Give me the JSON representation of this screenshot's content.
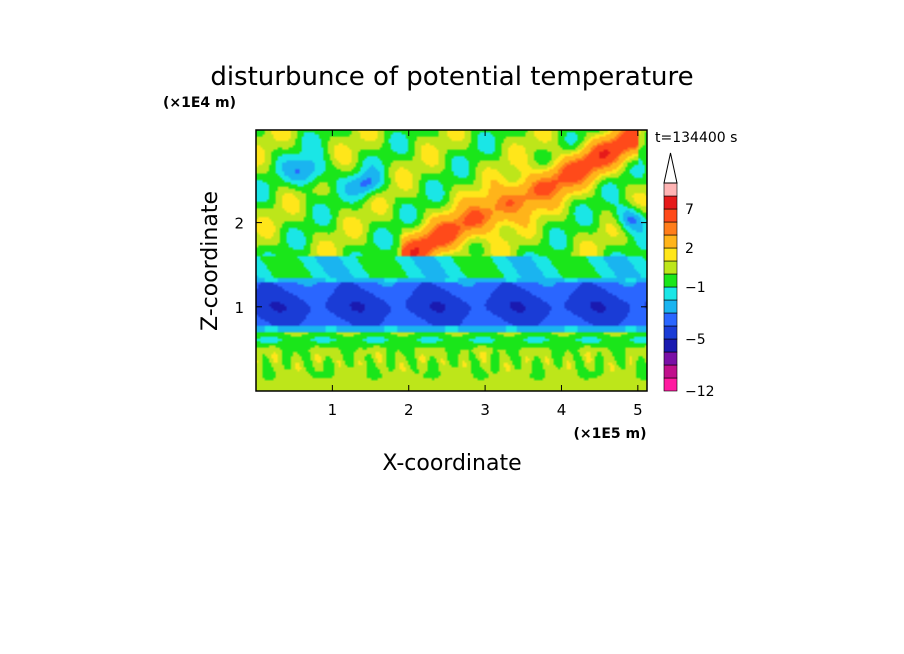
{
  "chart_data": {
    "type": "heatmap",
    "title": "disturbunce of potential temperature",
    "xlabel": "X-coordinate",
    "ylabel": "Z-coordinate",
    "x_unit": "(×1E5 m)",
    "y_unit": "(×1E4 m)",
    "time_label": "t=134400 s",
    "xlim": [
      0,
      5.12
    ],
    "ylim": [
      0,
      3.1
    ],
    "x_ticks": [
      "1",
      "2",
      "3",
      "4",
      "5"
    ],
    "y_ticks": [
      "1",
      "2"
    ],
    "colorbar": {
      "levels": [
        -12,
        -11,
        -9,
        -7,
        -5,
        -4,
        -3,
        -2,
        -1,
        0,
        1,
        2,
        4,
        5,
        7,
        9,
        11
      ],
      "tick_labels": [
        "-12",
        "-5",
        "-1",
        "2",
        "7"
      ],
      "colors": [
        "#ff1aa0",
        "#c0108c",
        "#7a10a6",
        "#1a1ab0",
        "#1a3cd6",
        "#2a66ff",
        "#1ab4f0",
        "#1ae6e6",
        "#1ae61a",
        "#bde61a",
        "#ffe61a",
        "#ffb41a",
        "#ff7d1a",
        "#ff4a1a",
        "#e61a1a",
        "#ffb4b4"
      ],
      "extend_max": true
    },
    "field_summary": {
      "bands": [
        {
          "z_range": [
            0,
            0.1
          ],
          "level": "0 to 1"
        },
        {
          "z_range": [
            0.1,
            0.7
          ],
          "level": "-2 to 2, wavy"
        },
        {
          "z_range": [
            0.7,
            1.35
          ],
          "level": "-5 to -3 (minimum band near z=1.0)"
        },
        {
          "z_range": [
            1.35,
            1.6
          ],
          "level": "-2 to 0"
        },
        {
          "z_range": [
            1.6,
            3.1
          ],
          "level": "-4 to 5, oblique wave pattern"
        }
      ],
      "maximum_feature": "diagonal warm band rising from x≈2.3,z≈1.8 to x≈4.5,z≈2.8"
    }
  }
}
